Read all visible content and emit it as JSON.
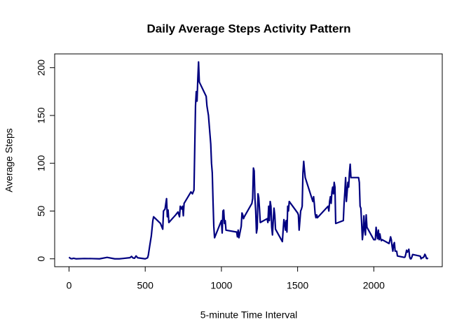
{
  "chart_data": {
    "type": "line",
    "title": "Daily Average Steps Activity Pattern",
    "x_label": "5-minute Time Interval",
    "y_label": "Average Steps",
    "xlim": [
      -94.2,
      2449.2
    ],
    "ylim": [
      -8.25,
      214.42
    ],
    "xticks": [
      0,
      500,
      1000,
      1500,
      2000
    ],
    "yticks": [
      0,
      50,
      100,
      150,
      200
    ],
    "x": [
      0,
      10,
      20,
      30,
      45,
      100,
      150,
      200,
      250,
      300,
      330,
      350,
      400,
      410,
      420,
      430,
      440,
      450,
      500,
      515,
      520,
      530,
      540,
      550,
      555,
      600,
      615,
      620,
      630,
      640,
      645,
      650,
      655,
      700,
      715,
      725,
      730,
      740,
      745,
      750,
      755,
      800,
      810,
      820,
      830,
      835,
      840,
      845,
      850,
      855,
      900,
      905,
      910,
      915,
      920,
      930,
      935,
      940,
      945,
      950,
      955,
      1000,
      1005,
      1010,
      1015,
      1020,
      1025,
      1030,
      1100,
      1105,
      1110,
      1115,
      1130,
      1135,
      1140,
      1145,
      1150,
      1200,
      1205,
      1210,
      1215,
      1220,
      1225,
      1230,
      1235,
      1240,
      1245,
      1250,
      1255,
      1300,
      1305,
      1310,
      1315,
      1320,
      1325,
      1330,
      1335,
      1340,
      1345,
      1350,
      1355,
      1400,
      1405,
      1410,
      1415,
      1420,
      1425,
      1430,
      1435,
      1440,
      1445,
      1500,
      1505,
      1510,
      1515,
      1520,
      1525,
      1530,
      1535,
      1540,
      1545,
      1550,
      1600,
      1605,
      1610,
      1615,
      1620,
      1625,
      1630,
      1700,
      1705,
      1710,
      1715,
      1720,
      1725,
      1730,
      1735,
      1740,
      1745,
      1750,
      1800,
      1805,
      1810,
      1815,
      1820,
      1825,
      1830,
      1835,
      1840,
      1845,
      1850,
      1855,
      1900,
      1905,
      1910,
      1915,
      1920,
      1925,
      1930,
      1935,
      1940,
      1945,
      1950,
      1955,
      2000,
      2005,
      2010,
      2015,
      2020,
      2025,
      2030,
      2035,
      2040,
      2045,
      2050,
      2055,
      2100,
      2105,
      2110,
      2115,
      2120,
      2125,
      2130,
      2135,
      2140,
      2145,
      2150,
      2155,
      2200,
      2205,
      2210,
      2215,
      2220,
      2225,
      2230,
      2235,
      2240,
      2245,
      2250,
      2255,
      2300,
      2305,
      2310,
      2315,
      2320,
      2325,
      2330,
      2335,
      2340,
      2345,
      2350,
      2355
    ],
    "series": [
      {
        "name": "Average Steps",
        "color": "#000080",
        "values": [
          1.7,
          0.3,
          0.1,
          0.6,
          0,
          0.3,
          0.2,
          0,
          1.5,
          0,
          0,
          0.3,
          1.2,
          2.5,
          0.9,
          0.6,
          3,
          1.1,
          0,
          1,
          3.5,
          14,
          24,
          40,
          44,
          37,
          31,
          50,
          52,
          63,
          44,
          51,
          38,
          46,
          49,
          44,
          55,
          52,
          55,
          45,
          58,
          70,
          68,
          72,
          160,
          175,
          165,
          188,
          206,
          185,
          170,
          160,
          155,
          150,
          140,
          120,
          100,
          90,
          60,
          34,
          22,
          40,
          27,
          50,
          51,
          37,
          40,
          30,
          28,
          23,
          30,
          22,
          34,
          48,
          46,
          42,
          44,
          58,
          63,
          95,
          92,
          63,
          50,
          27,
          32,
          68,
          64,
          52,
          38,
          42,
          38,
          55,
          40,
          60,
          55,
          33,
          25,
          40,
          53,
          46,
          31,
          18,
          30,
          41,
          37,
          30,
          40,
          28,
          55,
          50,
          60,
          48,
          46,
          30,
          40,
          50,
          52,
          55,
          90,
          102,
          93,
          85,
          60,
          65,
          57,
          47,
          43,
          46,
          43,
          55,
          50,
          60,
          65,
          58,
          70,
          75,
          68,
          80,
          75,
          37,
          40,
          58,
          70,
          85,
          60,
          70,
          80,
          75,
          90,
          99,
          85,
          85,
          85,
          80,
          55,
          53,
          38,
          20,
          28,
          45,
          31,
          25,
          46,
          33,
          20,
          20,
          20,
          33,
          26,
          21,
          30,
          20,
          26,
          21,
          19,
          20,
          16,
          19,
          23,
          20,
          13,
          8,
          15,
          17,
          8,
          8,
          8,
          3,
          1.5,
          2,
          5,
          9,
          7,
          8,
          10,
          2,
          0,
          0.1,
          2,
          4.5,
          3,
          2.8,
          0,
          1,
          1,
          1.5,
          2.6,
          4.7,
          3.3,
          0.6,
          0.2,
          1.1
        ]
      }
    ]
  }
}
